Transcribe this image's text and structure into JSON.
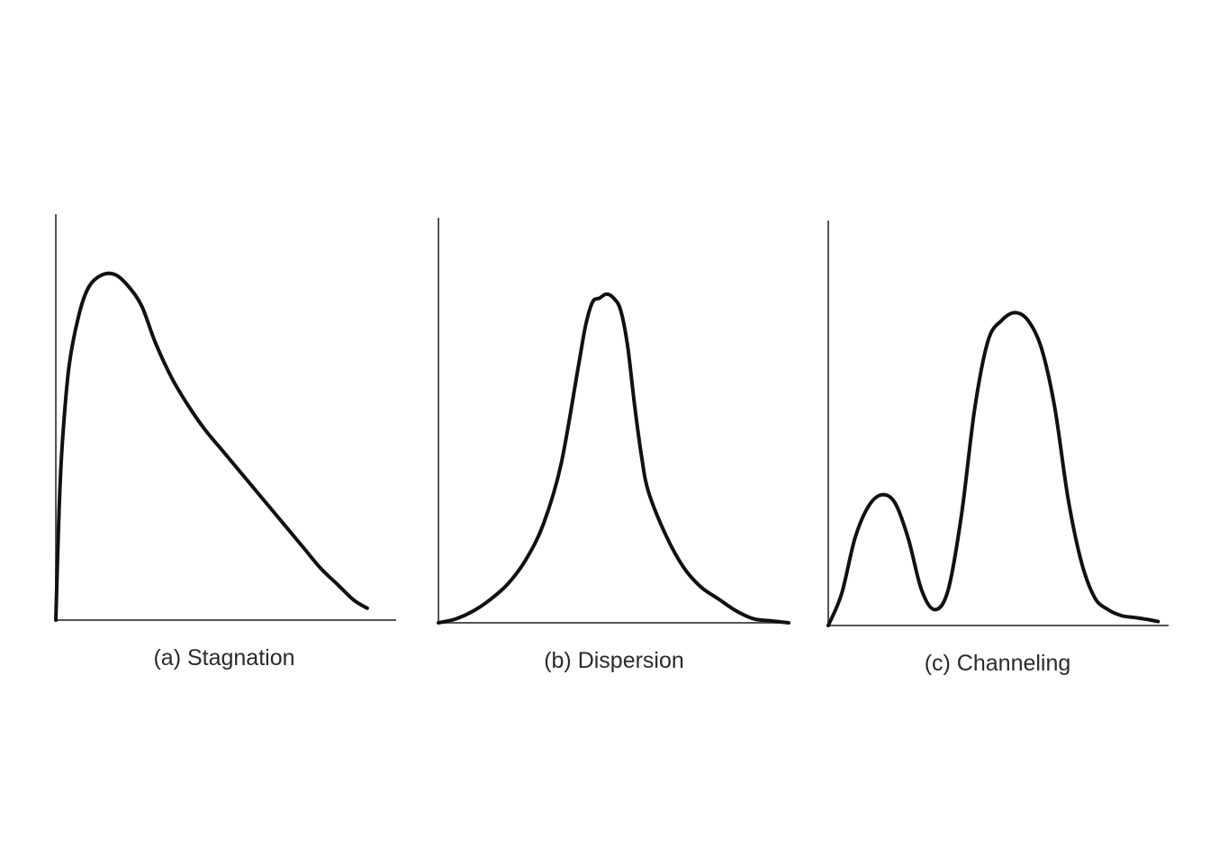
{
  "chart_data": [
    {
      "type": "line",
      "caption": "(a) Stagnation",
      "curve_color": "#111111",
      "axes_color": "#555555",
      "grid": false,
      "legend": "none",
      "xlim": [
        0,
        1
      ],
      "ylim": [
        0,
        1
      ],
      "series": [
        {
          "x": [
            0.0,
            0.01,
            0.02,
            0.04,
            0.07,
            0.1,
            0.14,
            0.18,
            0.22,
            0.26,
            0.3,
            0.35,
            0.4,
            0.45,
            0.5,
            0.55,
            0.6,
            0.65,
            0.7,
            0.75,
            0.8,
            0.85,
            0.9,
            0.94
          ],
          "y": [
            0.0,
            0.28,
            0.45,
            0.64,
            0.77,
            0.84,
            0.87,
            0.87,
            0.84,
            0.79,
            0.7,
            0.61,
            0.54,
            0.48,
            0.43,
            0.38,
            0.33,
            0.28,
            0.23,
            0.18,
            0.13,
            0.09,
            0.05,
            0.03
          ]
        }
      ]
    },
    {
      "type": "line",
      "caption": "(b) Dispersion",
      "curve_color": "#111111",
      "axes_color": "#555555",
      "grid": false,
      "legend": "none",
      "xlim": [
        0,
        1
      ],
      "ylim": [
        0,
        1
      ],
      "series": [
        {
          "x": [
            0.0,
            0.05,
            0.1,
            0.15,
            0.2,
            0.25,
            0.3,
            0.35,
            0.4,
            0.42,
            0.44,
            0.46,
            0.48,
            0.5,
            0.52,
            0.54,
            0.56,
            0.58,
            0.6,
            0.65,
            0.7,
            0.75,
            0.8,
            0.85,
            0.9,
            0.95,
            1.0
          ],
          "y": [
            0.0,
            0.01,
            0.03,
            0.06,
            0.1,
            0.16,
            0.25,
            0.4,
            0.65,
            0.75,
            0.81,
            0.82,
            0.83,
            0.82,
            0.79,
            0.7,
            0.55,
            0.42,
            0.33,
            0.22,
            0.14,
            0.09,
            0.06,
            0.03,
            0.01,
            0.005,
            0.0
          ]
        }
      ]
    },
    {
      "type": "line",
      "caption": "(c) Channeling",
      "curve_color": "#111111",
      "axes_color": "#555555",
      "grid": false,
      "legend": "none",
      "xlim": [
        0,
        1
      ],
      "ylim": [
        0,
        1
      ],
      "series": [
        {
          "x": [
            0.0,
            0.04,
            0.08,
            0.12,
            0.16,
            0.2,
            0.24,
            0.28,
            0.32,
            0.36,
            0.4,
            0.44,
            0.48,
            0.52,
            0.56,
            0.6,
            0.64,
            0.68,
            0.72,
            0.76,
            0.8,
            0.84,
            0.88,
            0.92,
            0.96,
            0.99
          ],
          "y": [
            0.0,
            0.08,
            0.22,
            0.3,
            0.33,
            0.31,
            0.22,
            0.09,
            0.04,
            0.09,
            0.28,
            0.55,
            0.72,
            0.77,
            0.79,
            0.77,
            0.7,
            0.55,
            0.32,
            0.16,
            0.07,
            0.04,
            0.025,
            0.02,
            0.015,
            0.01
          ]
        }
      ]
    }
  ]
}
